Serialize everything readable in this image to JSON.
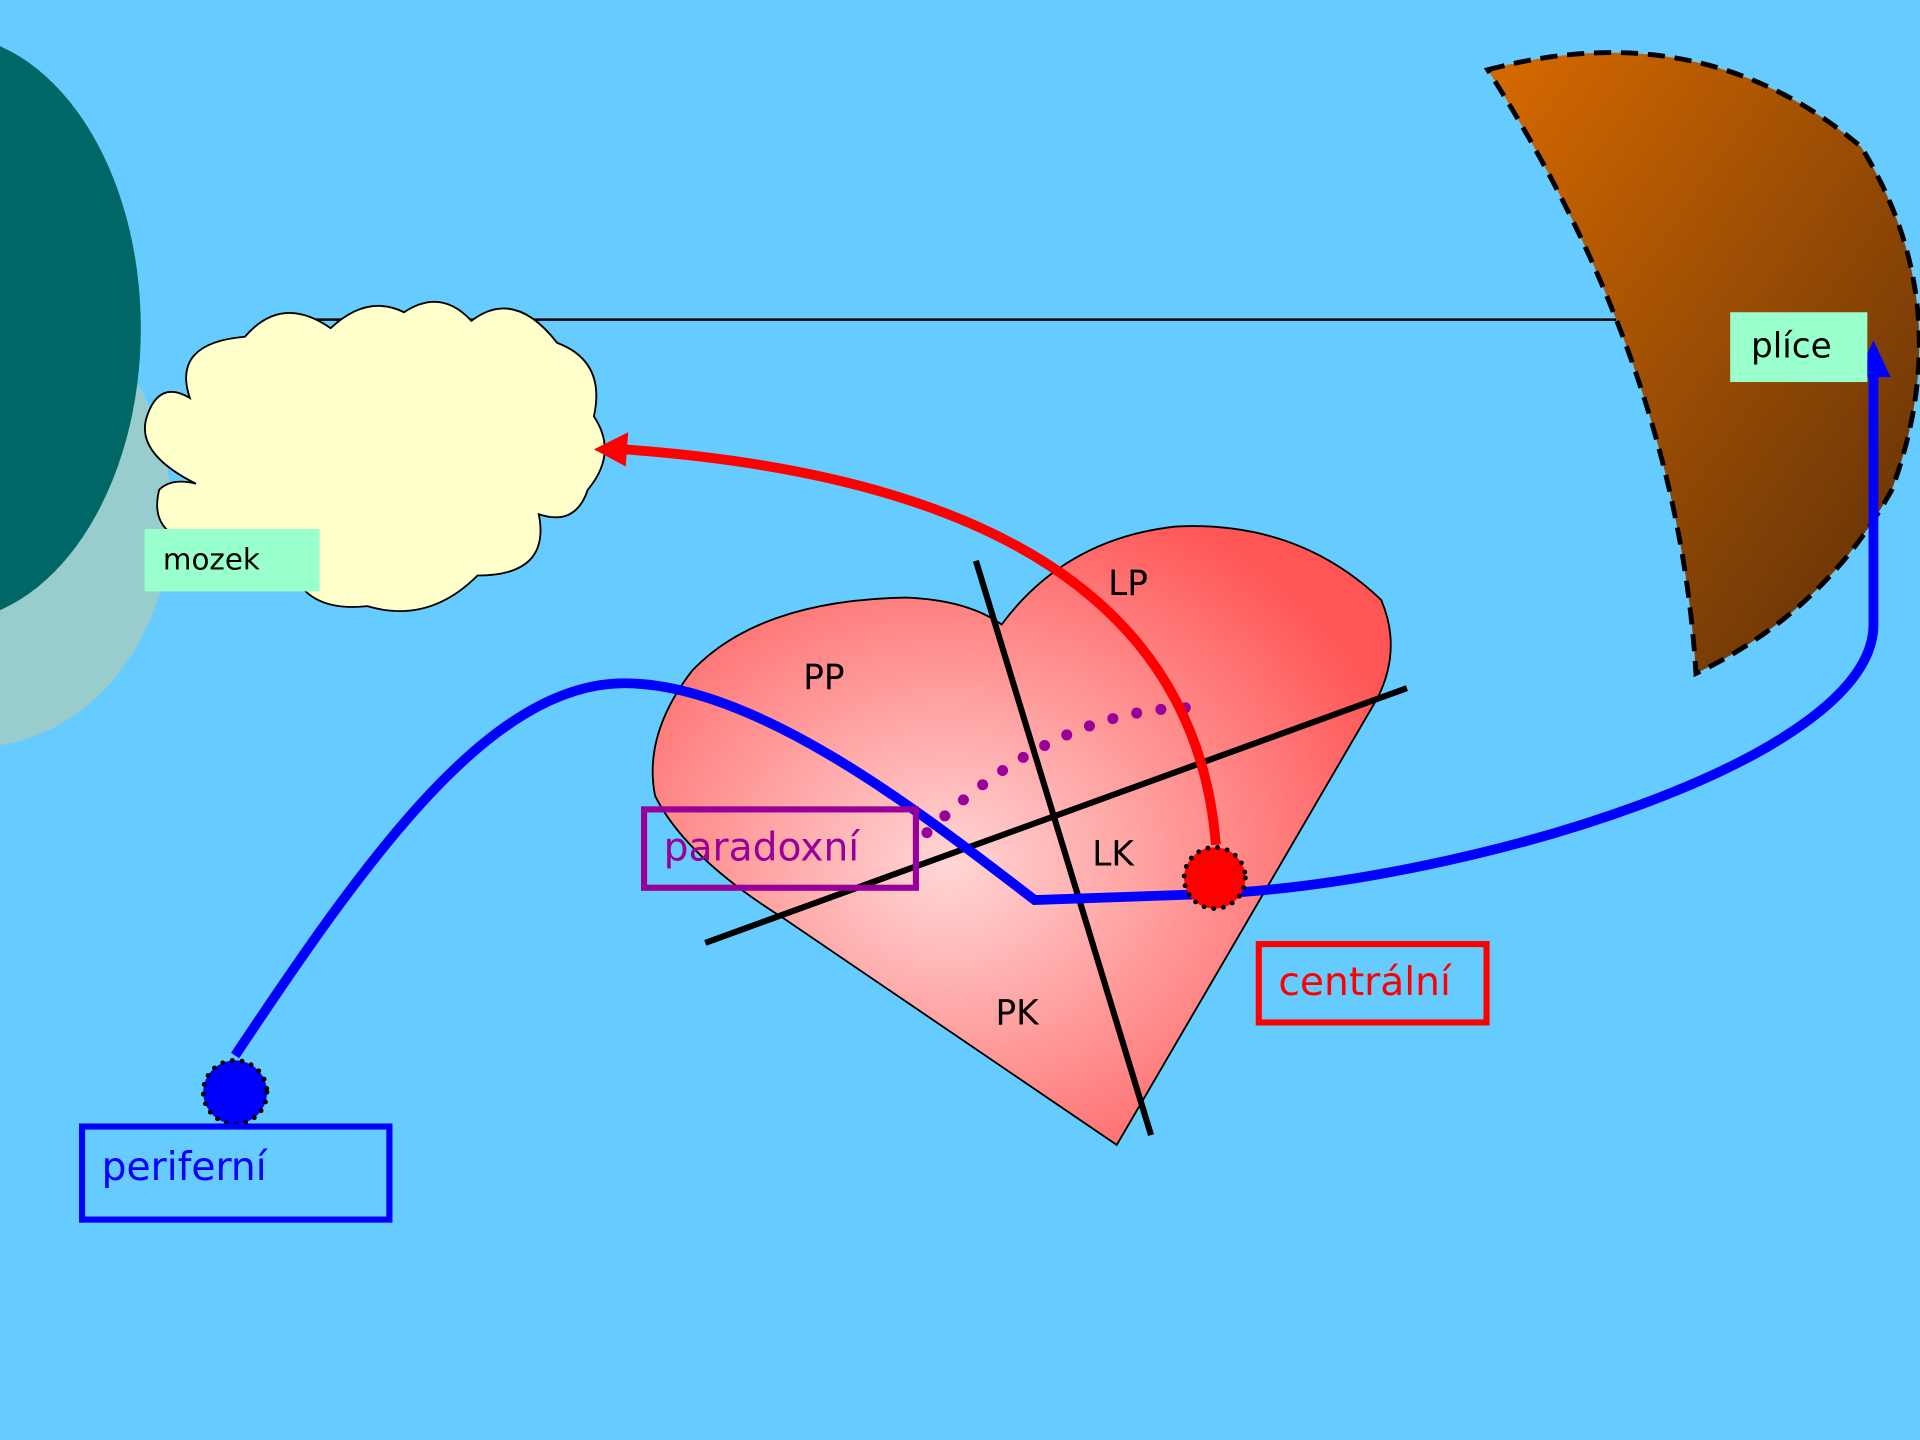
{
  "labels": {
    "brain": "mozek",
    "lungs": "plíce"
  },
  "heart": {
    "chambers": [
      "LP",
      "PP",
      "LK",
      "PK"
    ]
  },
  "embolism_types": [
    "paradoxní",
    "centrální",
    "periferní"
  ]
}
